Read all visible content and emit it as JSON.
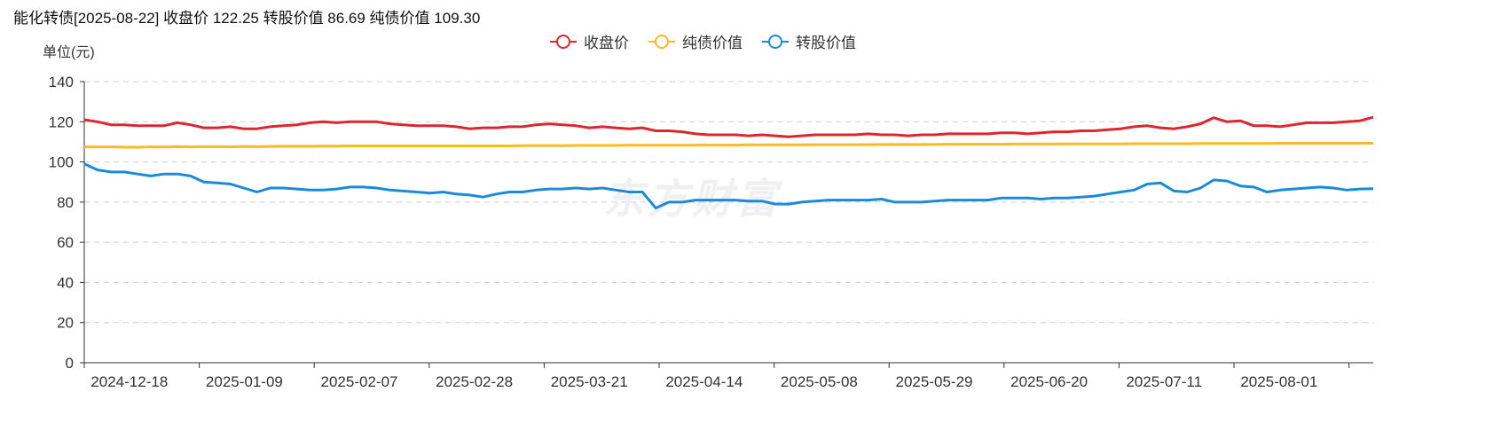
{
  "header": {
    "title": "能化转债[2025-08-22] 收盘价 122.25 转股价值 86.69 纯债价值 109.30"
  },
  "watermark": "东方财富",
  "chart_data": {
    "type": "line",
    "unit_label": "单位(元)",
    "ylim": [
      0,
      140
    ],
    "yticks": [
      "0",
      "20",
      "40",
      "60",
      "80",
      "100",
      "120",
      "140"
    ],
    "grid": true,
    "legend_position": "top-center",
    "xtick_labels": [
      "2024-12-18",
      "2025-01-09",
      "2025-02-07",
      "2025-02-28",
      "2025-03-21",
      "2025-04-14",
      "2025-05-08",
      "2025-05-29",
      "2025-06-20",
      "2025-07-11",
      "2025-08-01"
    ],
    "series": [
      {
        "name": "收盘价",
        "color": "#d9282f",
        "values": [
          121,
          120,
          118.5,
          118.5,
          118,
          118,
          118,
          119.5,
          118.5,
          117,
          117,
          117.5,
          116.5,
          116.5,
          117.5,
          118,
          118.5,
          119.5,
          120,
          119.5,
          120,
          120,
          120,
          119,
          118.5,
          118,
          118,
          118,
          117.5,
          116.5,
          117,
          117,
          117.5,
          117.5,
          118.5,
          119,
          118.5,
          118,
          117,
          117.5,
          117,
          116.5,
          117,
          115.5,
          115.5,
          115,
          114,
          113.5,
          113.5,
          113.5,
          113,
          113.5,
          113,
          112.5,
          113,
          113.5,
          113.5,
          113.5,
          113.5,
          114,
          113.5,
          113.5,
          113,
          113.5,
          113.5,
          114,
          114,
          114,
          114,
          114.5,
          114.5,
          114,
          114.5,
          115,
          115,
          115.5,
          115.5,
          116,
          116.5,
          117.5,
          118,
          117,
          116.5,
          117.5,
          119,
          122,
          120,
          120.5,
          118,
          118,
          117.5,
          118.5,
          119.5,
          119.5,
          119.5,
          120,
          120.5,
          122.25
        ]
      },
      {
        "name": "纯债价值",
        "color": "#fbb923",
        "values": [
          107.5,
          107.5,
          107.5,
          107.3,
          107.3,
          107.5,
          107.4,
          107.6,
          107.5,
          107.6,
          107.6,
          107.5,
          107.7,
          107.6,
          107.7,
          107.8,
          107.8,
          107.8,
          107.9,
          107.9,
          108,
          108,
          108,
          108,
          108,
          108,
          108,
          108,
          108,
          108,
          108,
          108,
          108,
          108.1,
          108.1,
          108.1,
          108.1,
          108.2,
          108.2,
          108.2,
          108.2,
          108.3,
          108.3,
          108.3,
          108.3,
          108.3,
          108.4,
          108.4,
          108.4,
          108.4,
          108.5,
          108.5,
          108.5,
          108.5,
          108.5,
          108.6,
          108.6,
          108.6,
          108.6,
          108.6,
          108.7,
          108.7,
          108.7,
          108.7,
          108.7,
          108.8,
          108.8,
          108.8,
          108.8,
          108.8,
          108.9,
          108.9,
          108.9,
          108.9,
          109,
          109,
          109,
          109,
          109,
          109.1,
          109.1,
          109.1,
          109.1,
          109.1,
          109.2,
          109.2,
          109.2,
          109.2,
          109.2,
          109.2,
          109.3,
          109.3,
          109.3,
          109.3,
          109.3,
          109.3,
          109.3,
          109.3
        ]
      },
      {
        "name": "转股价值",
        "color": "#1b8bd8",
        "values": [
          99,
          96,
          95,
          95,
          94,
          93,
          94,
          94,
          93,
          90,
          89.5,
          89,
          87,
          85,
          87,
          87,
          86.5,
          86,
          86,
          86.5,
          87.5,
          87.5,
          87,
          86,
          85.5,
          85,
          84.5,
          85,
          84,
          83.5,
          82.5,
          84,
          85,
          85,
          86,
          86.5,
          86.5,
          87,
          86.5,
          87,
          86,
          85,
          85,
          77,
          80,
          80,
          81,
          81,
          81,
          81,
          80.5,
          80.5,
          79,
          79,
          80,
          80.5,
          81,
          81,
          81,
          81,
          81.5,
          80,
          80,
          80,
          80.5,
          81,
          81,
          81,
          81,
          82,
          82,
          82,
          81.5,
          82,
          82,
          82.5,
          83,
          84,
          85,
          86,
          89,
          89.5,
          85.5,
          85,
          87,
          91,
          90.5,
          88,
          87.5,
          85,
          86,
          86.5,
          87,
          87.5,
          87,
          86,
          86.5,
          86.69
        ]
      }
    ]
  }
}
